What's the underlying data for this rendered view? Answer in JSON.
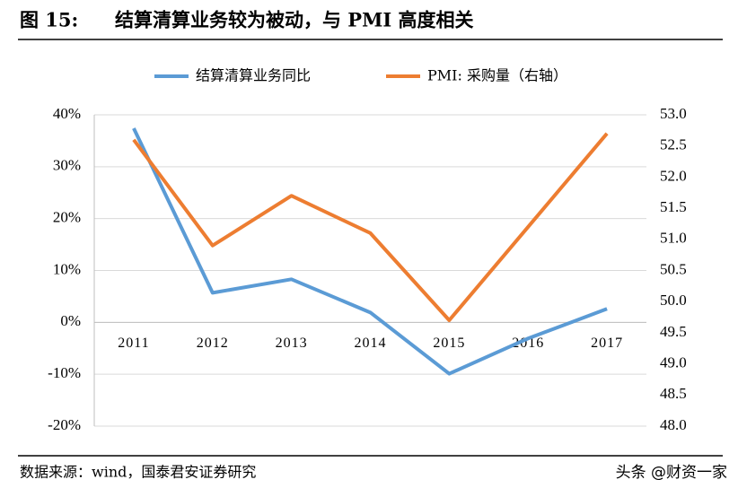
{
  "figure_label": "图 15:",
  "chart_data": {
    "type": "line",
    "title": "结算清算业务较为被动，与 PMI 高度相关",
    "categories": [
      "2011",
      "2012",
      "2013",
      "2014",
      "2015",
      "2016",
      "2017"
    ],
    "series": [
      {
        "name": "结算清算业务同比",
        "color": "#5b9bd5",
        "values": [
          37.4,
          5.7,
          8.3,
          1.9,
          -9.9,
          -3.1,
          2.6
        ]
      },
      {
        "name": "PMI: 采购量（右轴）",
        "color": "#ed7d31",
        "axis": "y2",
        "values": [
          52.6,
          50.9,
          51.7,
          51.1,
          49.7,
          51.2,
          52.7
        ]
      }
    ],
    "ylim": [
      -20,
      40
    ],
    "yticks": [
      {
        "value": 40,
        "label": "40%"
      },
      {
        "value": 30,
        "label": "30%"
      },
      {
        "value": 20,
        "label": "20%"
      },
      {
        "value": 10,
        "label": "10%"
      },
      {
        "value": 0,
        "label": "0%"
      },
      {
        "value": -10,
        "label": "-10%"
      },
      {
        "value": -20,
        "label": "-20%"
      }
    ],
    "y2lim": [
      48,
      53
    ],
    "y2ticks": [
      {
        "value": 53,
        "label": "53.0"
      },
      52.5,
      {
        "value": 52,
        "label": "52.0"
      },
      51.5,
      {
        "value": 51,
        "label": "51.0"
      },
      50.5,
      {
        "value": 50,
        "label": "50.0"
      },
      49.5,
      {
        "value": 49,
        "label": "49.0"
      },
      48.5,
      {
        "value": 48,
        "label": "48.0"
      }
    ],
    "grid": true,
    "legend": "top",
    "source": "数据来源：wind，国泰君安证券研究",
    "watermark": "头条 @财资一家"
  }
}
